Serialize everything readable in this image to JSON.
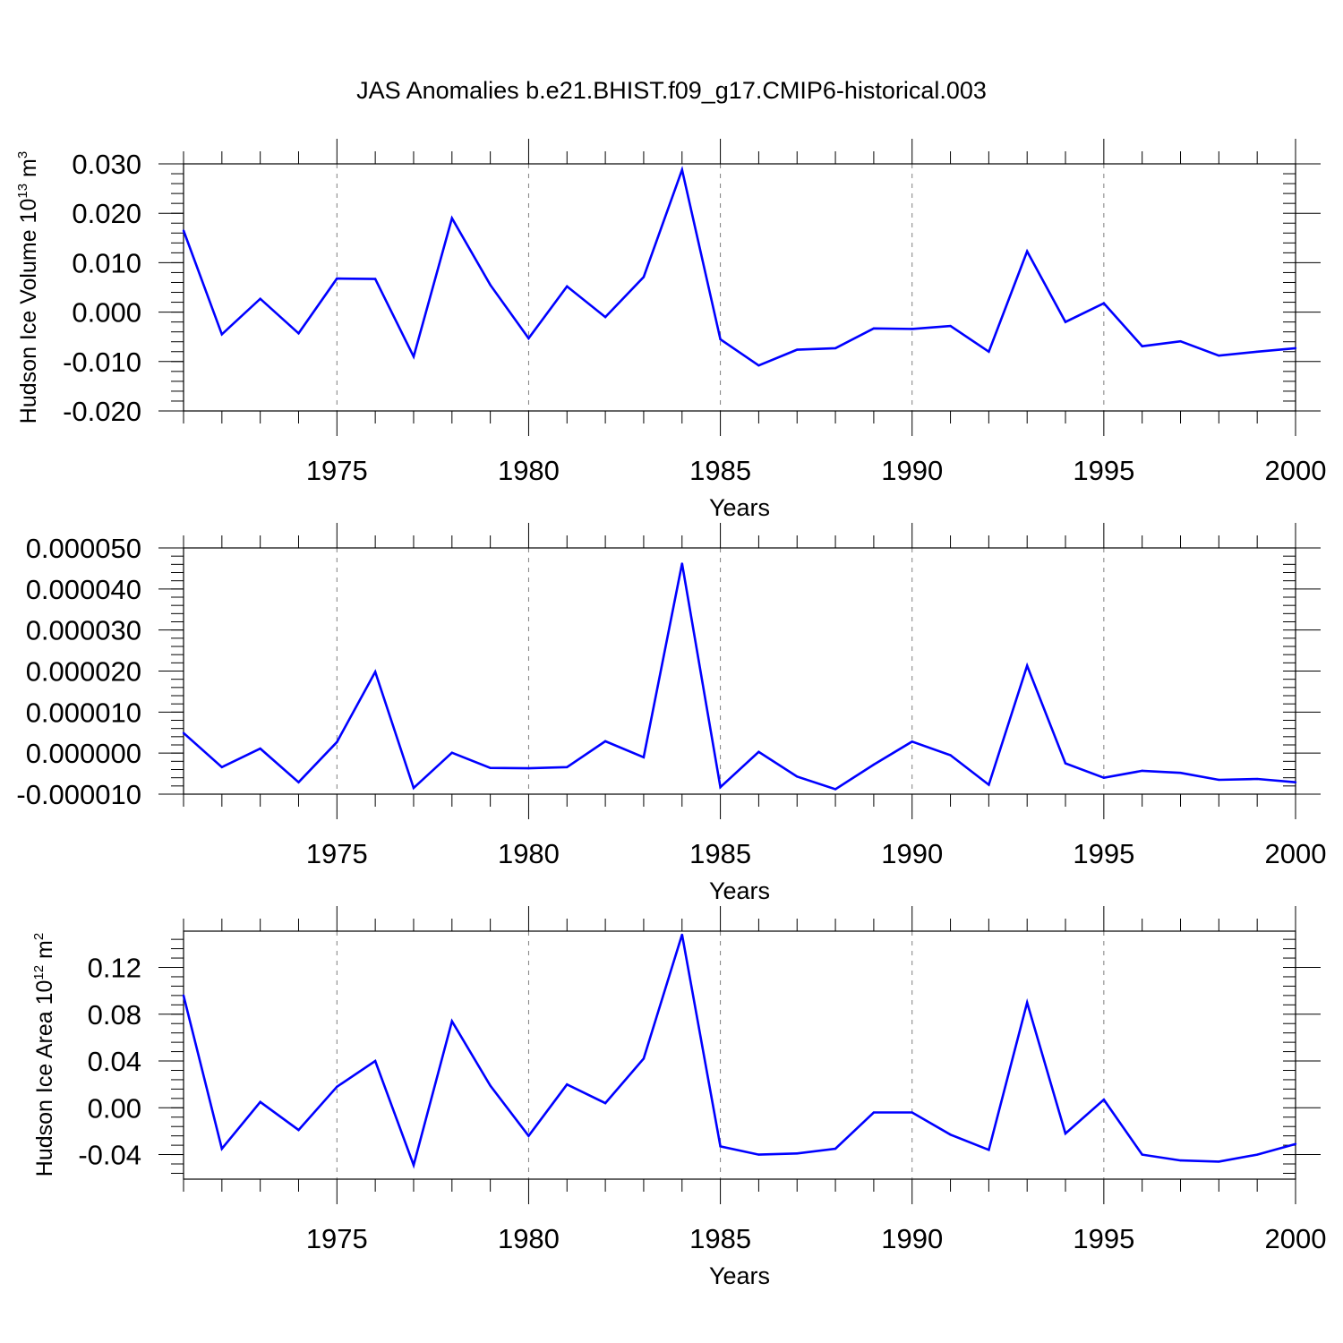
{
  "title": "JAS Anomalies b.e21.BHIST.f09_g17.CMIP6-historical.003",
  "colors": {
    "line": "#0000ff",
    "axis": "#000000",
    "grid": "#7f7f7f"
  },
  "chart_data": [
    {
      "type": "line",
      "name": "ice-volume",
      "ylabel_main": "Hudson Ice Volume 10",
      "ylabel_sup": "13",
      "ylabel_unit": " m",
      "ylabel_unit_sup": "3",
      "xlabel": "Years",
      "xlim": [
        1971,
        2000
      ],
      "ylim": [
        -0.02,
        0.03
      ],
      "x_ticks": [
        "1975",
        "1980",
        "1985",
        "1990",
        "1995",
        "2000"
      ],
      "y_ticks": [
        "-0.020",
        "-0.010",
        "0.000",
        "0.010",
        "0.020",
        "0.030"
      ],
      "x": [
        1971,
        1972,
        1973,
        1974,
        1975,
        1976,
        1977,
        1978,
        1979,
        1980,
        1981,
        1982,
        1983,
        1984,
        1985,
        1986,
        1987,
        1988,
        1989,
        1990,
        1991,
        1992,
        1993,
        1994,
        1995,
        1996,
        1997,
        1998,
        1999,
        2000
      ],
      "values": [
        0.0165,
        -0.0045,
        0.0027,
        -0.0043,
        0.0068,
        0.0067,
        -0.009,
        0.019,
        0.0055,
        -0.0053,
        0.0052,
        -0.001,
        0.0071,
        0.0288,
        -0.0055,
        -0.0108,
        -0.0076,
        -0.0073,
        -0.0033,
        -0.0034,
        -0.0028,
        -0.008,
        0.0123,
        -0.002,
        0.0018,
        -0.0069,
        -0.0059,
        -0.0088,
        -0.008,
        -0.0073
      ]
    },
    {
      "type": "line",
      "name": "middle-panel",
      "ylabel_main": "",
      "ylabel_sup": "",
      "ylabel_unit": "",
      "ylabel_unit_sup": "",
      "xlabel": "Years",
      "xlim": [
        1971,
        2000
      ],
      "ylim": [
        -1e-05,
        5e-05
      ],
      "x_ticks": [
        "1975",
        "1980",
        "1985",
        "1990",
        "1995",
        "2000"
      ],
      "y_ticks": [
        "-0.000010",
        "0.000000",
        "0.000010",
        "0.000020",
        "0.000030",
        "0.000040",
        "0.000050"
      ],
      "x": [
        1971,
        1972,
        1973,
        1974,
        1975,
        1976,
        1977,
        1978,
        1979,
        1980,
        1981,
        1982,
        1983,
        1984,
        1985,
        1986,
        1987,
        1988,
        1989,
        1990,
        1991,
        1992,
        1993,
        1994,
        1995,
        1996,
        1997,
        1998,
        1999,
        2000
      ],
      "values": [
        4.9e-06,
        -3.4e-06,
        1.1e-06,
        -7.1e-06,
        2.7e-06,
        1.98e-05,
        -8.5e-06,
        1e-07,
        -3.6e-06,
        -3.7e-06,
        -3.4e-06,
        2.9e-06,
        -1e-06,
        4.62e-05,
        -8.3e-06,
        3e-07,
        -5.7e-06,
        -8.8e-06,
        -2.8e-06,
        2.8e-06,
        -5e-07,
        -7.7e-06,
        2.13e-05,
        -2.5e-06,
        -6e-06,
        -4.3e-06,
        -4.8e-06,
        -6.5e-06,
        -6.3e-06,
        -7.1e-06
      ]
    },
    {
      "type": "line",
      "name": "ice-area",
      "ylabel_main": "Hudson Ice Area 10",
      "ylabel_sup": "12",
      "ylabel_unit": " m",
      "ylabel_unit_sup": "2",
      "xlabel": "Years",
      "xlim": [
        1971,
        2000
      ],
      "ylim": [
        -0.061,
        0.151
      ],
      "x_ticks": [
        "1975",
        "1980",
        "1985",
        "1990",
        "1995",
        "2000"
      ],
      "y_ticks": [
        "-0.04",
        "0.00",
        "0.04",
        "0.08",
        "0.12"
      ],
      "x": [
        1971,
        1972,
        1973,
        1974,
        1975,
        1976,
        1977,
        1978,
        1979,
        1980,
        1981,
        1982,
        1983,
        1984,
        1985,
        1986,
        1987,
        1988,
        1989,
        1990,
        1991,
        1992,
        1993,
        1994,
        1995,
        1996,
        1997,
        1998,
        1999,
        2000
      ],
      "values": [
        0.096,
        -0.035,
        0.005,
        -0.019,
        0.018,
        0.04,
        -0.049,
        0.074,
        0.019,
        -0.024,
        0.02,
        0.004,
        0.042,
        0.148,
        -0.033,
        -0.04,
        -0.039,
        -0.035,
        -0.004,
        -0.004,
        -0.023,
        -0.036,
        0.09,
        -0.022,
        0.007,
        -0.04,
        -0.045,
        -0.046,
        -0.04,
        -0.031
      ]
    }
  ]
}
